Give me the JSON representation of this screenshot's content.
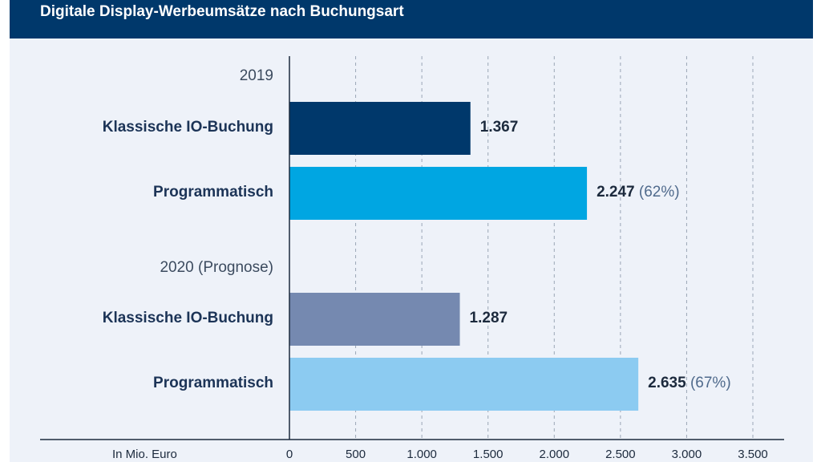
{
  "title": "Digitale Display-Werbeumsätze nach Buchungsart",
  "chart_data": {
    "type": "bar",
    "orientation": "horizontal",
    "unit_label": "In Mio. Euro",
    "xlim": [
      0,
      3500
    ],
    "x_ticks": [
      0,
      500,
      1000,
      1500,
      2000,
      2500,
      3000,
      3500
    ],
    "x_tick_labels": [
      "0",
      "500",
      "1.000",
      "1.500",
      "2.000",
      "2.500",
      "3.000",
      "3.500"
    ],
    "grid": "vertical dashed",
    "groups": [
      {
        "label": "2019",
        "bars": [
          {
            "category": "Klassische IO-Buchung",
            "value": 1367,
            "value_label": "1.367",
            "share_label": "",
            "color": "#00386b"
          },
          {
            "category": "Programmatisch",
            "value": 2247,
            "value_label": "2.247",
            "share_label": "(62%)",
            "color": "#00a6e2"
          }
        ]
      },
      {
        "label": "2020 (Prognose)",
        "bars": [
          {
            "category": "Klassische IO-Buchung",
            "value": 1287,
            "value_label": "1.287",
            "share_label": "",
            "color": "#7589b0"
          },
          {
            "category": "Programmatisch",
            "value": 2635,
            "value_label": "2.635",
            "share_label": "(67%)",
            "color": "#8ccbf1"
          }
        ]
      }
    ]
  }
}
